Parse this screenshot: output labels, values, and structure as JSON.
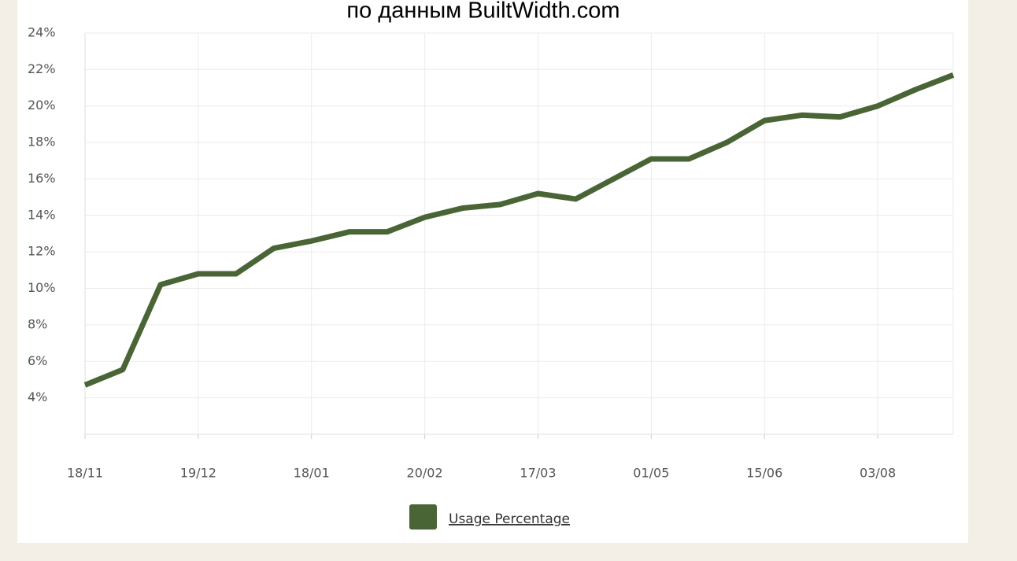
{
  "chart_data": {
    "type": "line",
    "title": "по данным BuiltWidth.com",
    "categories": [
      "18/11",
      null,
      null,
      "19/12",
      null,
      null,
      "18/01",
      null,
      null,
      "20/02",
      null,
      null,
      "17/03",
      null,
      null,
      "01/05",
      null,
      null,
      "15/06",
      null,
      null,
      "03/08",
      null,
      null
    ],
    "series": [
      {
        "name": "Usage Percentage",
        "color": "#4a6535",
        "values": [
          4.7,
          5.55,
          10.2,
          10.8,
          10.8,
          12.2,
          12.6,
          13.1,
          13.1,
          13.9,
          14.4,
          14.6,
          15.2,
          14.9,
          16.0,
          17.1,
          17.1,
          18.0,
          19.2,
          19.5,
          19.4,
          20.0,
          20.9,
          21.7
        ]
      }
    ],
    "ylim": [
      2,
      24
    ],
    "yticks": [
      {
        "value": 4,
        "label": "4%"
      },
      {
        "value": 6,
        "label": "6%"
      },
      {
        "value": 8,
        "label": "8%"
      },
      {
        "value": 10,
        "label": "10%"
      },
      {
        "value": 12,
        "label": "12%"
      },
      {
        "value": 14,
        "label": "14%"
      },
      {
        "value": 16,
        "label": "16%"
      },
      {
        "value": 18,
        "label": "18%"
      },
      {
        "value": 20,
        "label": "20%"
      },
      {
        "value": 22,
        "label": "22%"
      },
      {
        "value": 24,
        "label": "24%"
      }
    ],
    "grid": true
  }
}
